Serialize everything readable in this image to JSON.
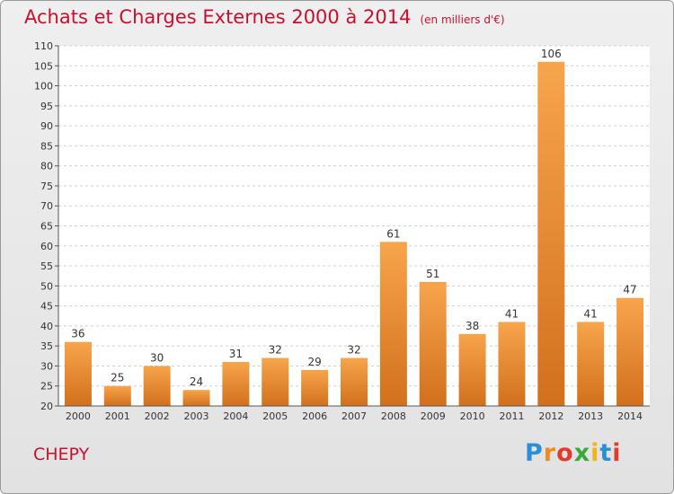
{
  "header": {
    "title": "Achats et Charges Externes 2000 à 2014",
    "unit": "(en milliers d'€)"
  },
  "footer": {
    "commune": "CHEPY",
    "brand_letters": [
      "P",
      "r",
      "o",
      "x",
      "i",
      "t",
      "i"
    ]
  },
  "colors": {
    "title": "#c8102e",
    "bar_top": "#f7a54c",
    "bar_bottom": "#d2701c",
    "grid": "#d0d0d0"
  },
  "chart_data": {
    "type": "bar",
    "title": "Achats et Charges Externes 2000 à 2014",
    "subtitle": "(en milliers d'€)",
    "xlabel": "",
    "ylabel": "",
    "categories": [
      "2000",
      "2001",
      "2002",
      "2003",
      "2004",
      "2005",
      "2006",
      "2007",
      "2008",
      "2009",
      "2010",
      "2011",
      "2012",
      "2013",
      "2014"
    ],
    "values": [
      36,
      25,
      30,
      24,
      31,
      32,
      29,
      32,
      61,
      51,
      38,
      41,
      106,
      41,
      47
    ],
    "ylim": [
      20,
      110
    ],
    "yticks": [
      20,
      25,
      30,
      35,
      40,
      45,
      50,
      55,
      60,
      65,
      70,
      75,
      80,
      85,
      90,
      95,
      100,
      105,
      110
    ],
    "grid": true,
    "legend": "none"
  }
}
